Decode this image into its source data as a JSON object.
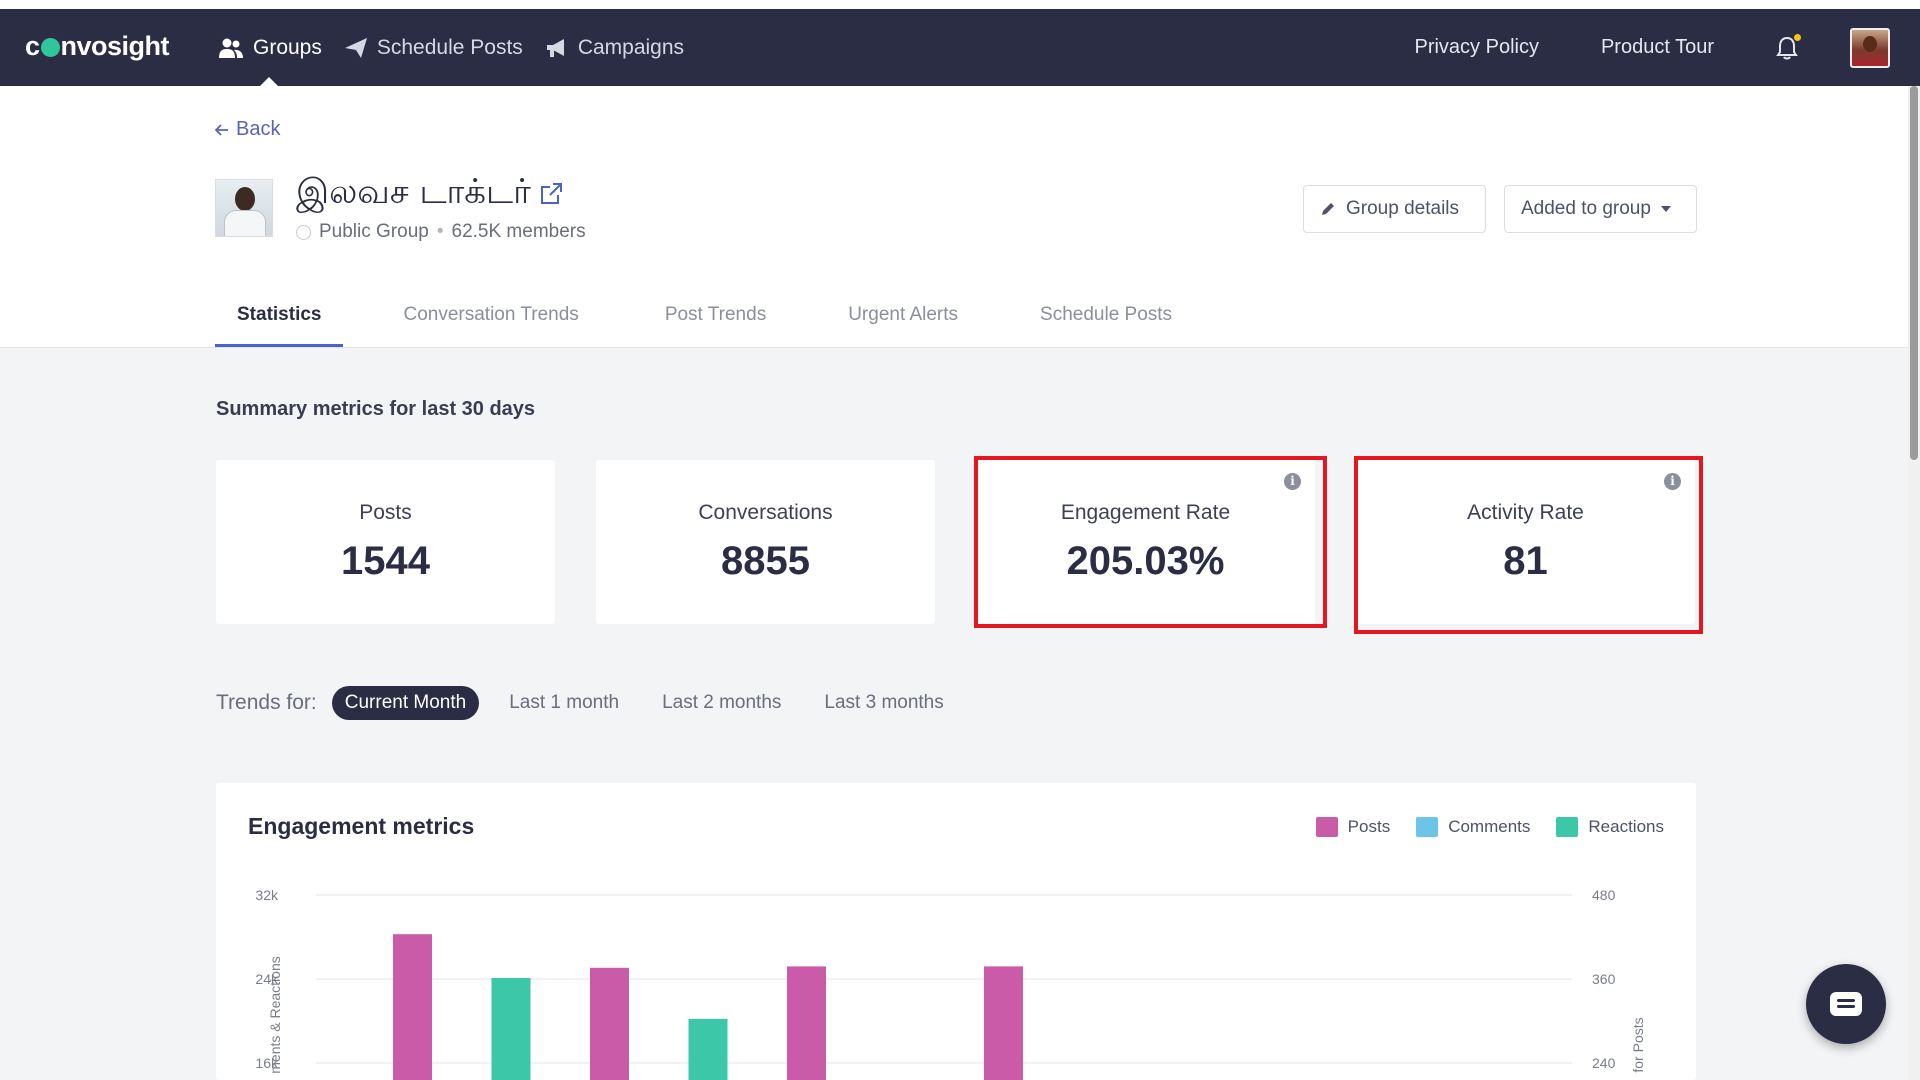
{
  "nav": {
    "logo_start": "c",
    "logo_end": "nvosight",
    "items": [
      {
        "label": "Groups",
        "icon": "users-icon",
        "active": true
      },
      {
        "label": "Schedule Posts",
        "icon": "paper-plane-icon",
        "active": false
      },
      {
        "label": "Campaigns",
        "icon": "megaphone-icon",
        "active": false
      }
    ],
    "privacy_policy": "Privacy Policy",
    "product_tour": "Product Tour",
    "notification_dot_color": "#f5c518"
  },
  "back": "Back",
  "group": {
    "name": "இலவச டாக்டர்",
    "privacy": "Public Group",
    "members": "62.5K members"
  },
  "buttons": {
    "group_details": "Group details",
    "added_to_group": "Added to group"
  },
  "tabs": [
    {
      "label": "Statistics",
      "active": true
    },
    {
      "label": "Conversation Trends",
      "active": false
    },
    {
      "label": "Post Trends",
      "active": false
    },
    {
      "label": "Urgent Alerts",
      "active": false
    },
    {
      "label": "Schedule Posts",
      "active": false
    }
  ],
  "summary": {
    "title": "Summary metrics for last 30 days",
    "metrics": [
      {
        "label": "Posts",
        "value": "1544",
        "info": false,
        "highlighted": false
      },
      {
        "label": "Conversations",
        "value": "8855",
        "info": false,
        "highlighted": false
      },
      {
        "label": "Engagement Rate",
        "value": "205.03%",
        "info": true,
        "highlighted": true
      },
      {
        "label": "Activity Rate",
        "value": "81",
        "info": true,
        "highlighted": true
      }
    ],
    "highlight_color": "#e4161f"
  },
  "trends": {
    "label": "Trends for:",
    "options": [
      {
        "label": "Current Month",
        "active": true
      },
      {
        "label": "Last 1 month",
        "active": false
      },
      {
        "label": "Last 2 months",
        "active": false
      },
      {
        "label": "Last 3 months",
        "active": false
      }
    ]
  },
  "chart_data": {
    "type": "bar",
    "title": "Engagement metrics",
    "legend_position": "top-right",
    "grid": true,
    "left_axis": {
      "label": "ments & Reactions",
      "ticks": [
        "32k",
        "24k",
        "16k"
      ],
      "ylim": [
        16000,
        32000
      ]
    },
    "right_axis": {
      "label": "for Posts",
      "ticks": [
        "480",
        "360",
        "240"
      ],
      "ylim": [
        240,
        480
      ]
    },
    "series": [
      {
        "name": "Posts",
        "color": "#c95ba8",
        "axis": "right",
        "values": [
          424,
          null,
          376,
          null,
          378,
          null,
          378
        ]
      },
      {
        "name": "Comments",
        "color": "#6cc4e6",
        "axis": "left",
        "values": [
          null,
          null,
          null,
          null,
          null,
          null,
          null
        ]
      },
      {
        "name": "Reactions",
        "color": "#3cc7a8",
        "axis": "left",
        "values": [
          null,
          24100,
          null,
          20200,
          null,
          null,
          null
        ]
      }
    ]
  },
  "colors": {
    "navbar": "#2a2d44",
    "accent": "#4a62c9",
    "link": "#5a63b8"
  }
}
